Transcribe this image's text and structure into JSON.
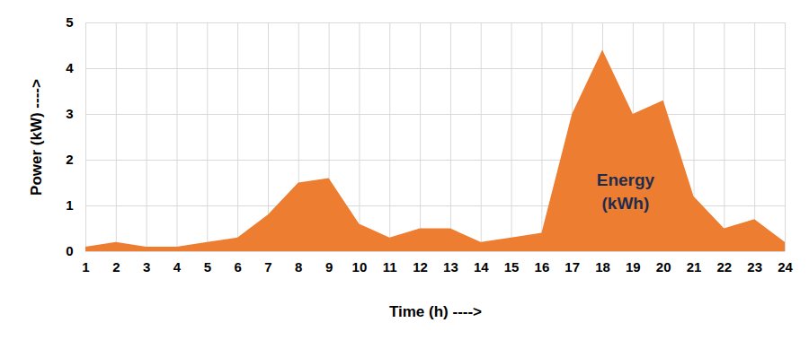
{
  "chart_data": {
    "type": "area",
    "xlabel": "Time (h) ---->",
    "ylabel": "Power (kW) ---->",
    "x": [
      1,
      2,
      3,
      4,
      5,
      6,
      7,
      8,
      9,
      10,
      11,
      12,
      13,
      14,
      15,
      16,
      17,
      18,
      19,
      20,
      21,
      22,
      23,
      24
    ],
    "values": [
      0.1,
      0.2,
      0.1,
      0.1,
      0.2,
      0.3,
      0.8,
      1.5,
      1.6,
      0.6,
      0.3,
      0.5,
      0.5,
      0.2,
      0.3,
      0.4,
      3.0,
      4.4,
      3.0,
      3.3,
      1.2,
      0.5,
      0.7,
      0.2
    ],
    "color": "#ed7d31",
    "xlim": [
      1,
      24
    ],
    "xticks": [
      1,
      2,
      3,
      4,
      5,
      6,
      7,
      8,
      9,
      10,
      11,
      12,
      13,
      14,
      15,
      16,
      17,
      18,
      19,
      20,
      21,
      22,
      23,
      24
    ],
    "ylim": [
      0,
      5
    ],
    "yticks": [
      0,
      1,
      2,
      3,
      4,
      5
    ],
    "grid": true,
    "annotations": [
      {
        "text": "Energy\n(kWh)",
        "x": 18.75,
        "y": 1.35
      }
    ]
  }
}
